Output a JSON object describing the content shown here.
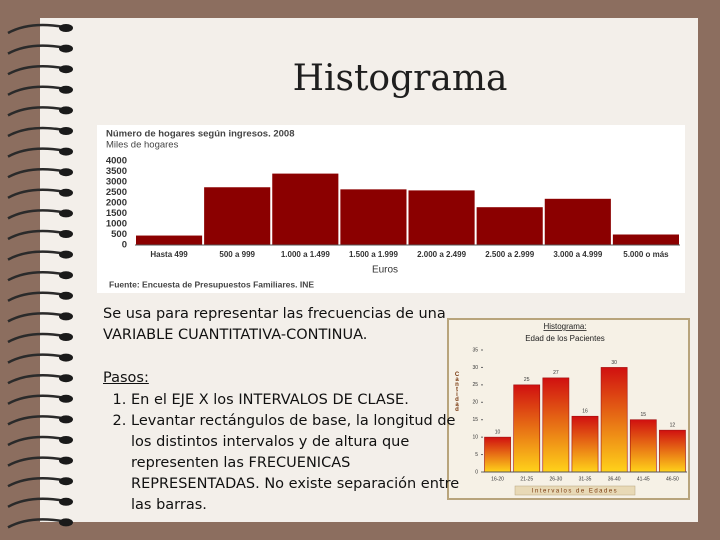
{
  "title": "Histograma",
  "body": {
    "intro": "Se usa para representar las frecuencias de una VARIABLE CUANTITATIVA-CONTINUA.",
    "steps_heading": "Pasos:",
    "steps": [
      "En el EJE X los INTERVALOS DE CLASE.",
      "Levantar rectángulos de base, la longitud de los distintos intervalos y de altura que representen las FRECUENICAS REPRESENTADAS. No existe separación entre las barras."
    ]
  },
  "chart_data": [
    {
      "type": "bar",
      "title": "Número de hogares según ingresos. 2008",
      "subtitle": "Miles de hogares",
      "x_label": "Euros",
      "source": "Fuente: Encuesta de Presupuestos Familiares. INE",
      "categories": [
        "Hasta 499",
        "500 a 999",
        "1.000 a 1.499",
        "1.500 a 1.999",
        "2.000 a 2.499",
        "2.500 a 2.999",
        "3.000 a 4.999",
        "5.000 o más"
      ],
      "values": [
        450,
        2750,
        3400,
        2650,
        2600,
        1800,
        2200,
        500
      ],
      "color": "#8b0000",
      "ylim": [
        0,
        4000
      ],
      "yticks": [
        0,
        500,
        1000,
        1500,
        2000,
        2500,
        3000,
        3500,
        4000
      ],
      "grid": false
    },
    {
      "type": "histogram",
      "title": "Histograma:",
      "subtitle": "Edad de los Pacientes",
      "y_label": "Cantidad",
      "x_label": "Intervalos de Edades",
      "categories": [
        "16-20",
        "21-25",
        "26-30",
        "31-35",
        "36-40",
        "41-45",
        "46-50"
      ],
      "values": [
        10,
        25,
        27,
        16,
        30,
        15,
        12
      ],
      "color": "#d01010",
      "ylim": [
        0,
        35
      ],
      "yticks": [
        0,
        5,
        10,
        15,
        20,
        25,
        30,
        35
      ],
      "grid": false
    }
  ]
}
